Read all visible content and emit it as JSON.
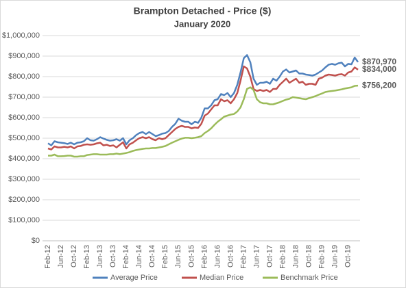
{
  "chart_data": {
    "type": "line",
    "title": "Brampton Detached - Price ($)",
    "subtitle": "January 2020",
    "categories": [
      "Feb-12",
      null,
      null,
      null,
      "Jun-12",
      null,
      null,
      null,
      "Oct-12",
      null,
      null,
      null,
      "Feb-13",
      null,
      null,
      null,
      "Jun-13",
      null,
      null,
      null,
      "Oct-13",
      null,
      null,
      null,
      "Feb-14",
      null,
      null,
      null,
      "Jun-14",
      null,
      null,
      null,
      "Oct-14",
      null,
      null,
      null,
      "Feb-15",
      null,
      null,
      null,
      "Jun-15",
      null,
      null,
      null,
      "Oct-15",
      null,
      null,
      null,
      "Feb-16",
      null,
      null,
      null,
      "Jun-16",
      null,
      null,
      null,
      "Oct-16",
      null,
      null,
      null,
      "Feb-17",
      null,
      null,
      null,
      "Jun-17",
      null,
      null,
      null,
      "Oct-17",
      null,
      null,
      null,
      "Feb-18",
      null,
      null,
      null,
      "Jun-18",
      null,
      null,
      null,
      "Oct-18",
      null,
      null,
      null,
      "Feb-19",
      null,
      null,
      null,
      "Jun-19",
      null,
      null,
      null,
      "Oct-19",
      null,
      null,
      null
    ],
    "series": [
      {
        "name": "Average Price",
        "color": "#4f81bd",
        "values": [
          475000,
          465000,
          485000,
          480000,
          478000,
          476000,
          472000,
          478000,
          470000,
          478000,
          480000,
          485000,
          500000,
          490000,
          488000,
          495000,
          505000,
          498000,
          492000,
          488000,
          490000,
          495000,
          488000,
          500000,
          470000,
          490000,
          500000,
          515000,
          525000,
          530000,
          520000,
          530000,
          520000,
          510000,
          515000,
          522000,
          525000,
          535000,
          555000,
          570000,
          595000,
          585000,
          580000,
          580000,
          568000,
          580000,
          575000,
          600000,
          645000,
          645000,
          660000,
          685000,
          690000,
          715000,
          710000,
          720000,
          700000,
          720000,
          760000,
          820000,
          890000,
          905000,
          870000,
          790000,
          760000,
          770000,
          770000,
          775000,
          765000,
          790000,
          780000,
          800000,
          825000,
          835000,
          820000,
          825000,
          830000,
          815000,
          815000,
          810000,
          808000,
          805000,
          810000,
          820000,
          830000,
          845000,
          858000,
          862000,
          858000,
          865000,
          868000,
          850000,
          862000,
          860000,
          893000,
          870970
        ],
        "value_labels": [
          null,
          null,
          null,
          null,
          null,
          null,
          null,
          null,
          null,
          null,
          null,
          null,
          null,
          null,
          null,
          null,
          null,
          null,
          null,
          null,
          null,
          null,
          null,
          null,
          null,
          null,
          null,
          null,
          null,
          null,
          null,
          null,
          null,
          null,
          null,
          null,
          null,
          null,
          null,
          null,
          null,
          null,
          null,
          null,
          null,
          null,
          null,
          null,
          null,
          null,
          null,
          null,
          null,
          null,
          null,
          null,
          null,
          null,
          null,
          null,
          null,
          null,
          null,
          null,
          null,
          null,
          null,
          null,
          null,
          null,
          null,
          null,
          null,
          null,
          null,
          null,
          null,
          null,
          null,
          null,
          null,
          null,
          null,
          null,
          null,
          null,
          null,
          null,
          null,
          null,
          null,
          null,
          null,
          null,
          null,
          "$870,970"
        ]
      },
      {
        "name": "Median Price",
        "color": "#c0504d",
        "values": [
          450000,
          445000,
          460000,
          455000,
          455000,
          458000,
          455000,
          460000,
          450000,
          460000,
          462000,
          468000,
          470000,
          468000,
          470000,
          475000,
          478000,
          465000,
          468000,
          462000,
          465000,
          455000,
          468000,
          480000,
          450000,
          470000,
          478000,
          490000,
          500000,
          505000,
          500000,
          505000,
          495000,
          490000,
          500000,
          495000,
          500000,
          515000,
          530000,
          545000,
          555000,
          560000,
          555000,
          555000,
          548000,
          552000,
          550000,
          570000,
          610000,
          620000,
          640000,
          660000,
          660000,
          690000,
          680000,
          685000,
          670000,
          690000,
          720000,
          780000,
          850000,
          840000,
          800000,
          740000,
          730000,
          735000,
          730000,
          735000,
          725000,
          740000,
          740000,
          760000,
          775000,
          790000,
          770000,
          780000,
          790000,
          770000,
          775000,
          760000,
          765000,
          765000,
          760000,
          790000,
          795000,
          805000,
          810000,
          808000,
          805000,
          810000,
          812000,
          805000,
          820000,
          825000,
          845000,
          834000
        ],
        "value_labels": [
          null,
          null,
          null,
          null,
          null,
          null,
          null,
          null,
          null,
          null,
          null,
          null,
          null,
          null,
          null,
          null,
          null,
          null,
          null,
          null,
          null,
          null,
          null,
          null,
          null,
          null,
          null,
          null,
          null,
          null,
          null,
          null,
          null,
          null,
          null,
          null,
          null,
          null,
          null,
          null,
          null,
          null,
          null,
          null,
          null,
          null,
          null,
          null,
          null,
          null,
          null,
          null,
          null,
          null,
          null,
          null,
          null,
          null,
          null,
          null,
          null,
          null,
          null,
          null,
          null,
          null,
          null,
          null,
          null,
          null,
          null,
          null,
          null,
          null,
          null,
          null,
          null,
          null,
          null,
          null,
          null,
          null,
          null,
          null,
          null,
          null,
          null,
          null,
          null,
          null,
          null,
          null,
          null,
          null,
          null,
          "$834,000"
        ]
      },
      {
        "name": "Benchmark Price",
        "color": "#9bbb59",
        "values": [
          415000,
          415000,
          420000,
          412000,
          412000,
          413000,
          415000,
          415000,
          410000,
          410000,
          412000,
          412000,
          418000,
          420000,
          422000,
          422000,
          420000,
          420000,
          420000,
          422000,
          422000,
          425000,
          422000,
          425000,
          428000,
          432000,
          438000,
          442000,
          445000,
          448000,
          450000,
          450000,
          452000,
          452000,
          455000,
          458000,
          462000,
          470000,
          478000,
          485000,
          492000,
          498000,
          502000,
          502000,
          500000,
          502000,
          505000,
          510000,
          525000,
          535000,
          548000,
          565000,
          580000,
          592000,
          605000,
          610000,
          615000,
          618000,
          630000,
          650000,
          690000,
          740000,
          748000,
          735000,
          690000,
          675000,
          670000,
          670000,
          665000,
          665000,
          670000,
          675000,
          682000,
          688000,
          692000,
          700000,
          698000,
          695000,
          692000,
          690000,
          695000,
          700000,
          705000,
          712000,
          718000,
          725000,
          728000,
          730000,
          732000,
          735000,
          738000,
          742000,
          745000,
          748000,
          755000,
          756200
        ],
        "value_labels": [
          null,
          null,
          null,
          null,
          null,
          null,
          null,
          null,
          null,
          null,
          null,
          null,
          null,
          null,
          null,
          null,
          null,
          null,
          null,
          null,
          null,
          null,
          null,
          null,
          null,
          null,
          null,
          null,
          null,
          null,
          null,
          null,
          null,
          null,
          null,
          null,
          null,
          null,
          null,
          null,
          null,
          null,
          null,
          null,
          null,
          null,
          null,
          null,
          null,
          null,
          null,
          null,
          null,
          null,
          null,
          null,
          null,
          null,
          null,
          null,
          null,
          null,
          null,
          null,
          null,
          null,
          null,
          null,
          null,
          null,
          null,
          null,
          null,
          null,
          null,
          null,
          null,
          null,
          null,
          null,
          null,
          null,
          null,
          null,
          null,
          null,
          null,
          null,
          null,
          null,
          null,
          null,
          null,
          null,
          null,
          "$756,200"
        ]
      }
    ],
    "ylim": [
      0,
      1000000
    ],
    "yticks": [
      {
        "value": 0,
        "label": "$0"
      },
      {
        "value": 100000,
        "label": "$100,000"
      },
      {
        "value": 200000,
        "label": "$200,000"
      },
      {
        "value": 300000,
        "label": "$300,000"
      },
      {
        "value": 400000,
        "label": "$400,000"
      },
      {
        "value": 500000,
        "label": "$500,000"
      },
      {
        "value": 600000,
        "label": "$600,000"
      },
      {
        "value": 700000,
        "label": "$700,000"
      },
      {
        "value": 800000,
        "label": "$800,000"
      },
      {
        "value": 900000,
        "label": "$900,000"
      },
      {
        "value": 1000000,
        "label": "$1,000,000"
      }
    ],
    "grid": true,
    "legend": "bottom"
  }
}
